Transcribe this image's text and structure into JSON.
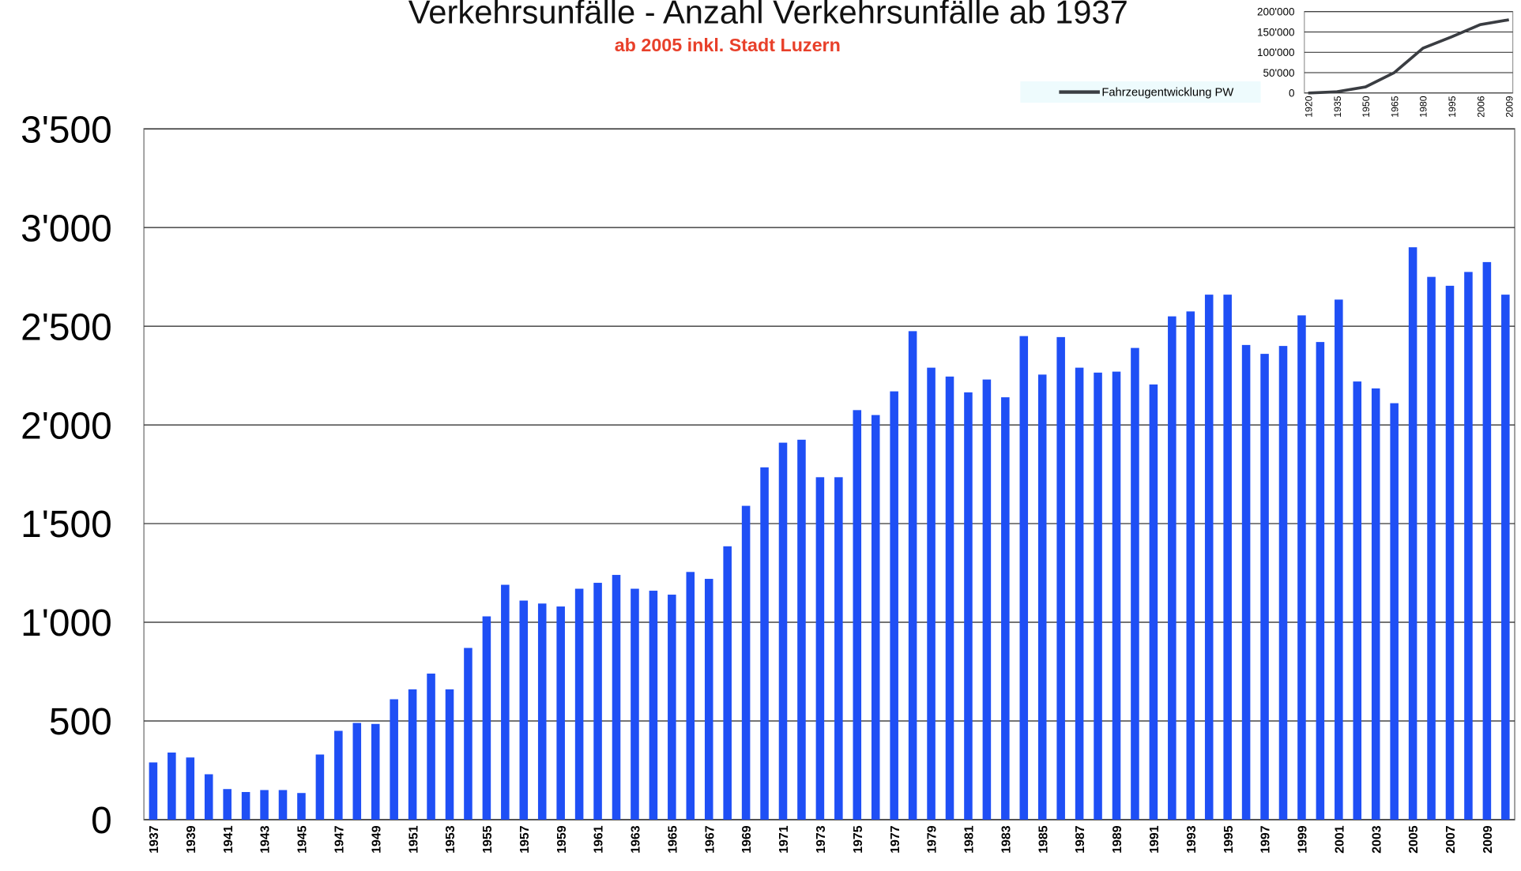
{
  "chart_data": [
    {
      "type": "bar",
      "title": "Verkehrsunfälle - Anzahl Verkehrsunfälle ab 1937",
      "subtitle": "ab 2005 inkl. Stadt Luzern",
      "categories": [
        "1937",
        null,
        "1939",
        null,
        "1941",
        null,
        "1943",
        null,
        "1945",
        null,
        "1947",
        null,
        "1949",
        null,
        "1951",
        null,
        "1953",
        null,
        "1955",
        null,
        "1957",
        null,
        "1959",
        null,
        "1961",
        null,
        "1963",
        null,
        "1965",
        null,
        "1967",
        null,
        "1969",
        null,
        "1971",
        null,
        "1973",
        null,
        "1975",
        null,
        "1977",
        null,
        "1979",
        null,
        "1981",
        null,
        "1983",
        null,
        "1985",
        null,
        "1987",
        null,
        "1989",
        null,
        "1991",
        null,
        "1993",
        null,
        "1995",
        null,
        "1997",
        null,
        "1999",
        null,
        "2001",
        null,
        "2003",
        null,
        "2005",
        null,
        "2007",
        null,
        "2009",
        null
      ],
      "values": [
        290,
        340,
        315,
        230,
        155,
        140,
        150,
        150,
        135,
        330,
        450,
        490,
        485,
        610,
        660,
        740,
        660,
        870,
        1030,
        1190,
        1110,
        1095,
        1080,
        1170,
        1200,
        1240,
        1170,
        1160,
        1140,
        1255,
        1220,
        1385,
        1590,
        1785,
        1910,
        1925,
        1735,
        1735,
        2075,
        2050,
        2170,
        2475,
        2290,
        2245,
        2165,
        2230,
        2140,
        2450,
        2255,
        2445,
        2290,
        2265,
        2270,
        2390,
        2205,
        2550,
        2575,
        2660,
        2660,
        2405,
        2360,
        2400,
        2555,
        2420,
        2635,
        2220,
        2185,
        2110,
        2900,
        2750,
        2705,
        2775,
        2825,
        2660
      ],
      "color": "#1f4ff5",
      "ylim": [
        0,
        3500
      ],
      "yticks": [
        0,
        500,
        {
          "value": 1000,
          "label": "1'000"
        },
        {
          "value": 1500,
          "label": "1'500"
        },
        {
          "value": 2000,
          "label": "2'000"
        },
        {
          "value": 2500,
          "label": "2'500"
        },
        {
          "value": 3000,
          "label": "3'000"
        },
        {
          "value": 3500,
          "label": "3'500"
        }
      ],
      "grid": true
    },
    {
      "type": "line",
      "categories": [
        "1920",
        "1935",
        "1950",
        "1965",
        "1980",
        "1995",
        "2006",
        "2009"
      ],
      "series": [
        {
          "name": "Fahrzeugentwicklung PW",
          "color": "#3a3d42",
          "values": [
            0,
            3000,
            15000,
            50000,
            110000,
            138000,
            168000,
            180000
          ]
        }
      ],
      "ylim": [
        0,
        200000
      ],
      "yticks": [
        0,
        {
          "value": 50000,
          "label": "50'000"
        },
        {
          "value": 100000,
          "label": "100'000"
        },
        {
          "value": 150000,
          "label": "150'000"
        },
        {
          "value": 200000,
          "label": "200'000"
        }
      ],
      "grid": true,
      "legend": "left"
    }
  ]
}
